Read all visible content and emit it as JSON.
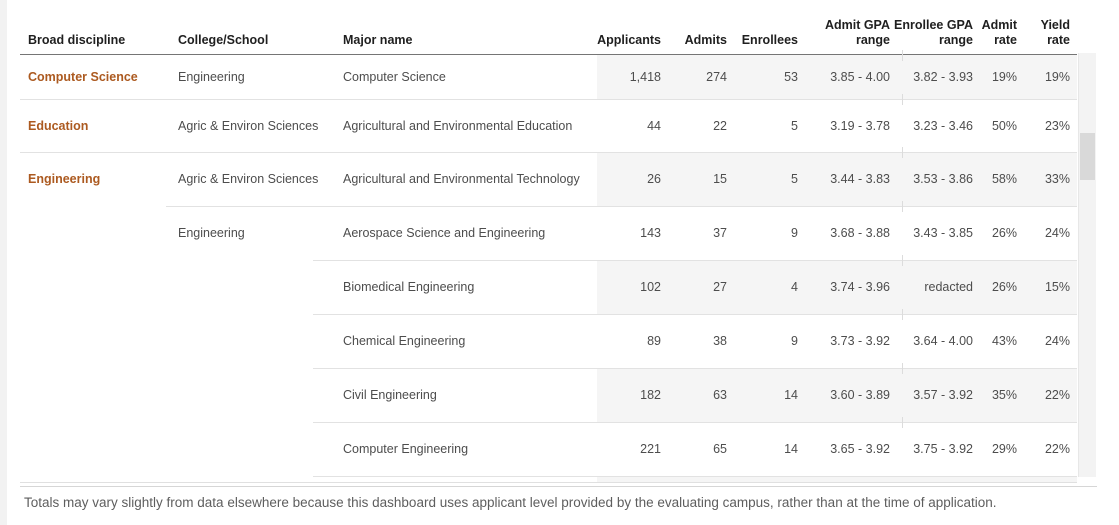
{
  "table": {
    "headers": {
      "broad": "Broad discipline",
      "college": "College/School",
      "major": "Major name",
      "applicants": "Applicants",
      "admits": "Admits",
      "enrollees": "Enrollees",
      "admit_gpa": "Admit GPA\nrange",
      "enrollee_gpa": "Enrollee GPA\nrange",
      "admit_rate": "Admit\nrate",
      "yield_rate": "Yield\nrate"
    },
    "rows": [
      {
        "broad": "Computer Science",
        "college": "Engineering",
        "major": "Computer Science",
        "applicants": "1,418",
        "admits": "274",
        "enrollees": "53",
        "admit_gpa": "3.85 - 4.00",
        "enrollee_gpa": "3.82 - 3.93",
        "admit_rate": "19%",
        "yield_rate": "19%"
      },
      {
        "broad": "Education",
        "college": "Agric & Environ Sciences",
        "major": "Agricultural and Environmental Education",
        "applicants": "44",
        "admits": "22",
        "enrollees": "5",
        "admit_gpa": "3.19 - 3.78",
        "enrollee_gpa": "3.23 - 3.46",
        "admit_rate": "50%",
        "yield_rate": "23%"
      },
      {
        "broad": "Engineering",
        "college": "Agric & Environ Sciences",
        "major": "Agricultural and Environmental Technology",
        "applicants": "26",
        "admits": "15",
        "enrollees": "5",
        "admit_gpa": "3.44 - 3.83",
        "enrollee_gpa": "3.53 - 3.86",
        "admit_rate": "58%",
        "yield_rate": "33%"
      },
      {
        "broad": "",
        "college": "Engineering",
        "major": "Aerospace Science and Engineering",
        "applicants": "143",
        "admits": "37",
        "enrollees": "9",
        "admit_gpa": "3.68 - 3.88",
        "enrollee_gpa": "3.43 - 3.85",
        "admit_rate": "26%",
        "yield_rate": "24%"
      },
      {
        "broad": "",
        "college": "",
        "major": "Biomedical Engineering",
        "applicants": "102",
        "admits": "27",
        "enrollees": "4",
        "admit_gpa": "3.74 - 3.96",
        "enrollee_gpa": "redacted",
        "admit_rate": "26%",
        "yield_rate": "15%"
      },
      {
        "broad": "",
        "college": "",
        "major": "Chemical Engineering",
        "applicants": "89",
        "admits": "38",
        "enrollees": "9",
        "admit_gpa": "3.73 - 3.92",
        "enrollee_gpa": "3.64 - 4.00",
        "admit_rate": "43%",
        "yield_rate": "24%"
      },
      {
        "broad": "",
        "college": "",
        "major": "Civil Engineering",
        "applicants": "182",
        "admits": "63",
        "enrollees": "14",
        "admit_gpa": "3.60 - 3.89",
        "enrollee_gpa": "3.57 - 3.92",
        "admit_rate": "35%",
        "yield_rate": "22%"
      },
      {
        "broad": "",
        "college": "",
        "major": "Computer Engineering",
        "applicants": "221",
        "admits": "65",
        "enrollees": "14",
        "admit_gpa": "3.65 - 3.92",
        "enrollee_gpa": "3.75 - 3.92",
        "admit_rate": "29%",
        "yield_rate": "22%"
      }
    ]
  },
  "footer": {
    "note": "Totals may vary slightly from data elsewhere because this dashboard uses applicant level provided by the evaluating campus, rather than at the time of application."
  },
  "colors": {
    "discipline_accent": "#ac5a20",
    "row_band": "#f5f5f5",
    "header_rule": "#757575",
    "row_rule": "#e2e2e2"
  }
}
